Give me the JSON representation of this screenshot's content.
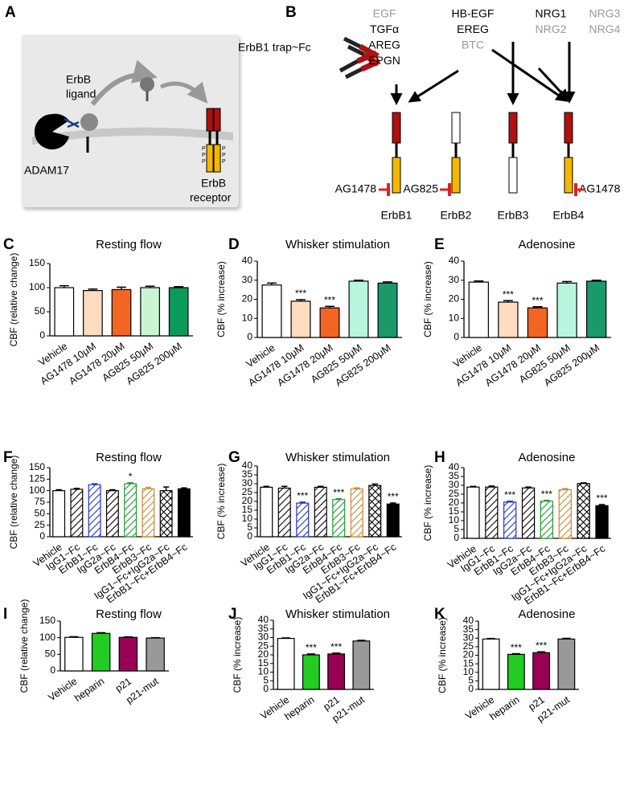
{
  "panel_a": {
    "letter": "A",
    "ligand_label": [
      "ErbB",
      "ligand"
    ],
    "enzyme_label": "ADAM17",
    "receptor_label": [
      "ErbB",
      "receptor"
    ],
    "phospho_labels": [
      "P",
      "P",
      "P",
      "P",
      "P",
      "P"
    ]
  },
  "panel_b": {
    "letter": "B",
    "trap_label": "ErbB1 trap~Fc",
    "ligand_groups": [
      [
        {
          "text": "EGF",
          "color": "#999999"
        },
        {
          "text": "TGFα",
          "color": "#000000"
        },
        {
          "text": "AREG",
          "color": "#000000"
        },
        {
          "text": "EPGN",
          "color": "#000000"
        }
      ],
      [
        {
          "text": "HB-EGF",
          "color": "#000000"
        },
        {
          "text": "EREG",
          "color": "#000000"
        },
        {
          "text": "BTC",
          "color": "#999999"
        }
      ],
      [
        {
          "text": "NRG1",
          "color": "#000000"
        },
        {
          "text": "NRG2",
          "color": "#999999"
        }
      ],
      [
        {
          "text": "NRG3",
          "color": "#999999"
        },
        {
          "text": "NRG4",
          "color": "#999999"
        }
      ]
    ],
    "receptors": [
      "ErbB1",
      "ErbB2",
      "ErbB3",
      "ErbB4"
    ],
    "inhibitors": [
      "AG1478",
      "AG825",
      "AG1478"
    ]
  },
  "chart_data": [
    {
      "type": "bar",
      "panel": "C",
      "title": "Resting flow",
      "y_label": "CBF (relative change)",
      "categories": [
        "Vehicle",
        "AG1478 10μM",
        "AG1478 20μM",
        "AG825 50μM",
        "AG825 200μM"
      ],
      "values": [
        100,
        94,
        96,
        100,
        100
      ],
      "errors": [
        4,
        3,
        5,
        3,
        2
      ],
      "colors": [
        "#ffffff",
        "#fddcc0",
        "#f26522",
        "#c9f5d2",
        "#0a9a5a"
      ],
      "patterns": [
        "solid",
        "solid",
        "solid",
        "solid",
        "solid"
      ],
      "significance": [
        null,
        null,
        null,
        null,
        null
      ],
      "ylim": [
        0,
        150
      ],
      "yticks": [
        0,
        50,
        100,
        150
      ]
    },
    {
      "type": "bar",
      "panel": "D",
      "title": "Whisker stimulation",
      "y_label": "CBF (% increase)",
      "categories": [
        "Vehicle",
        "AG1478 10μM",
        "AG1478 20μM",
        "AG825 50μM",
        "AG825 200μM"
      ],
      "values": [
        27.5,
        19,
        15.5,
        29.5,
        28.5
      ],
      "errors": [
        1,
        0.8,
        0.8,
        0.5,
        0.6
      ],
      "colors": [
        "#ffffff",
        "#fddcc0",
        "#f26522",
        "#b8f5de",
        "#1a9a6a"
      ],
      "patterns": [
        "solid",
        "solid",
        "solid",
        "solid",
        "solid"
      ],
      "significance": [
        null,
        "***",
        "***",
        null,
        null
      ],
      "ylim": [
        0,
        40
      ],
      "yticks": [
        0,
        10,
        20,
        30,
        40
      ]
    },
    {
      "type": "bar",
      "panel": "E",
      "title": "Adenosine",
      "y_label": "CBF (% increase)",
      "categories": [
        "Vehicle",
        "AG1478 10μM",
        "AG1478 20μM",
        "AG825 50μM",
        "AG825 200μM"
      ],
      "values": [
        29,
        18.5,
        15.5,
        28.5,
        29.5
      ],
      "errors": [
        0.6,
        0.8,
        0.6,
        0.8,
        0.5
      ],
      "colors": [
        "#ffffff",
        "#fddcc0",
        "#f26522",
        "#b8f5de",
        "#1a9a6a"
      ],
      "patterns": [
        "solid",
        "solid",
        "solid",
        "solid",
        "solid"
      ],
      "significance": [
        null,
        "***",
        "***",
        null,
        null
      ],
      "ylim": [
        0,
        40
      ],
      "yticks": [
        0,
        10,
        20,
        30,
        40
      ]
    },
    {
      "type": "bar",
      "panel": "F",
      "title": "Resting flow",
      "y_label": "CBF (relative change)",
      "categories": [
        "Vehicle",
        "IgG1~Fc",
        "ErbB1~Fc",
        "IgG2a~Fc",
        "ErbB4~Fc",
        "ErbB3~Fc",
        "IgG1~Fc+IgG2a~Fc",
        "ErbB1~Fc+ErbB4~Fc"
      ],
      "values": [
        100,
        103,
        113,
        100,
        115,
        104,
        100,
        104
      ],
      "errors": [
        2,
        2,
        2,
        2,
        2,
        3,
        8,
        2
      ],
      "colors": [
        "#ffffff",
        "#000000",
        "#2233cc",
        "#000000",
        "#229933",
        "#cc8833",
        "#000000",
        "#000000"
      ],
      "patterns": [
        "solid",
        "hatch",
        "hatch",
        "hatch",
        "hatch",
        "hatch",
        "cross",
        "solid"
      ],
      "significance": [
        null,
        null,
        null,
        null,
        "*",
        null,
        null,
        null
      ],
      "ylim": [
        0,
        150
      ],
      "yticks": [
        0,
        25,
        50,
        75,
        100,
        125,
        150
      ]
    },
    {
      "type": "bar",
      "panel": "G",
      "title": "Whisker stimulation",
      "y_label": "CBF (% increase)",
      "categories": [
        "Vehicle",
        "IgG1~Fc",
        "ErbB1~Fc",
        "IgG2a~Fc",
        "ErbB4~Fc",
        "ErbB3~Fc",
        "IgG1~Fc+IgG2a~Fc",
        "ErbB1~Fc+ErbB4~Fc"
      ],
      "values": [
        28,
        27.5,
        19,
        28,
        21,
        27,
        29,
        18.5
      ],
      "errors": [
        0.5,
        1,
        0.6,
        0.5,
        0.5,
        0.6,
        0.8,
        0.6
      ],
      "colors": [
        "#ffffff",
        "#000000",
        "#2233cc",
        "#000000",
        "#229933",
        "#cc8833",
        "#000000",
        "#000000"
      ],
      "patterns": [
        "solid",
        "hatch",
        "hatch",
        "hatch",
        "hatch",
        "hatch",
        "cross",
        "solid"
      ],
      "significance": [
        null,
        null,
        "***",
        null,
        "***",
        null,
        null,
        "***"
      ],
      "ylim": [
        0,
        40
      ],
      "yticks": [
        0,
        5,
        10,
        15,
        20,
        25,
        30,
        35,
        40
      ]
    },
    {
      "type": "bar",
      "panel": "H",
      "title": "Adenosine",
      "y_label": "CBF (% increase)",
      "categories": [
        "Vehicle",
        "IgG1~Fc",
        "ErbB1~Fc",
        "IgG2a~Fc",
        "ErbB4~Fc",
        "ErbB3~Fc",
        "IgG1~Fc+IgG2a~Fc",
        "ErbB1~Fc+ErbB4~Fc"
      ],
      "values": [
        29,
        29,
        20.5,
        28.5,
        21,
        27.5,
        31,
        18.5
      ],
      "errors": [
        0.4,
        0.6,
        0.5,
        0.5,
        0.5,
        0.6,
        0.4,
        0.6
      ],
      "colors": [
        "#ffffff",
        "#000000",
        "#2233cc",
        "#000000",
        "#229933",
        "#cc8833",
        "#000000",
        "#000000"
      ],
      "patterns": [
        "solid",
        "hatch",
        "hatch",
        "hatch",
        "hatch",
        "hatch",
        "cross",
        "solid"
      ],
      "significance": [
        null,
        null,
        "***",
        null,
        "***",
        null,
        null,
        "***"
      ],
      "ylim": [
        0,
        40
      ],
      "yticks": [
        0,
        5,
        10,
        15,
        20,
        25,
        30,
        35,
        40
      ]
    },
    {
      "type": "bar",
      "panel": "I",
      "title": "Resting flow",
      "y_label": "CBF (relative change)",
      "categories": [
        "Vehicle",
        "heparin",
        "p21",
        "p21-mut"
      ],
      "values": [
        101,
        113,
        101,
        99
      ],
      "errors": [
        2,
        2,
        1.5,
        1
      ],
      "colors": [
        "#ffffff",
        "#22cc22",
        "#990055",
        "#999999"
      ],
      "patterns": [
        "solid",
        "solid",
        "solid",
        "solid"
      ],
      "significance": [
        null,
        null,
        null,
        null
      ],
      "ylim": [
        0,
        150
      ],
      "yticks": [
        0,
        50,
        100,
        150
      ]
    },
    {
      "type": "bar",
      "panel": "J",
      "title": "Whisker stimulation",
      "y_label": "CBF (% increase)",
      "categories": [
        "Vehicle",
        "heparin",
        "p21",
        "p21-mut"
      ],
      "values": [
        29.5,
        20,
        20.5,
        28
      ],
      "errors": [
        0.3,
        0.5,
        0.5,
        0.4
      ],
      "colors": [
        "#ffffff",
        "#22cc22",
        "#990055",
        "#999999"
      ],
      "patterns": [
        "solid",
        "solid",
        "solid",
        "solid"
      ],
      "significance": [
        null,
        "***",
        "***",
        null
      ],
      "ylim": [
        0,
        40
      ],
      "yticks": [
        0,
        5,
        10,
        15,
        20,
        25,
        30,
        35,
        40
      ]
    },
    {
      "type": "bar",
      "panel": "K",
      "title": "Adenosine",
      "y_label": "CBF (% increase)",
      "categories": [
        "Vehicle",
        "heparin",
        "p21",
        "p21-mut"
      ],
      "values": [
        29.5,
        20.5,
        21.5,
        29.5
      ],
      "errors": [
        0.3,
        0.4,
        0.5,
        0.4
      ],
      "colors": [
        "#ffffff",
        "#22cc22",
        "#990055",
        "#999999"
      ],
      "patterns": [
        "solid",
        "solid",
        "solid",
        "solid"
      ],
      "significance": [
        null,
        "***",
        "***",
        null
      ],
      "ylim": [
        0,
        40
      ],
      "yticks": [
        0,
        5,
        10,
        15,
        20,
        25,
        30,
        35,
        40
      ]
    }
  ]
}
